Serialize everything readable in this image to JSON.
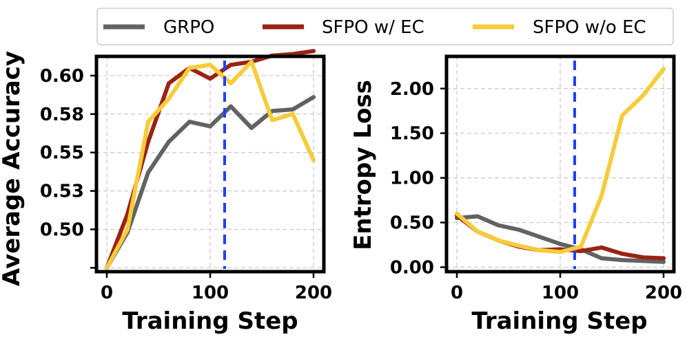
{
  "legend": {
    "entries": [
      {
        "label": "GRPO",
        "color": "#5f6361"
      },
      {
        "label": "SFPO w/ EC",
        "color": "#9b2314"
      },
      {
        "label": "SFPO w/o EC",
        "color": "#f6cc3b"
      }
    ]
  },
  "marker_color": "#1f3fff",
  "chart_data": [
    {
      "type": "line",
      "xlabel": "Training Step",
      "ylabel": "Average Accuracy",
      "xlim": [
        -10,
        210
      ],
      "ylim": [
        0.4775,
        0.6175
      ],
      "xticks": [
        0,
        100,
        200
      ],
      "xtick_labels": [
        "0",
        "100",
        "200"
      ],
      "yticks": [
        0.48,
        0.505,
        0.53,
        0.555,
        0.58,
        0.605
      ],
      "ytick_labels": [
        "",
        "0.50",
        "0.53",
        "0.55",
        "0.58",
        "0.60"
      ],
      "vline_x": 114,
      "x": [
        0,
        20,
        40,
        60,
        80,
        100,
        120,
        140,
        160,
        180,
        200
      ],
      "series": [
        {
          "name": "GRPO",
          "color": "#5f6361",
          "values": [
            0.48,
            0.503,
            0.542,
            0.562,
            0.575,
            0.572,
            0.585,
            0.571,
            0.582,
            0.583,
            0.591
          ]
        },
        {
          "name": "SFPO w/ EC",
          "color": "#9b2314",
          "values": [
            0.48,
            0.515,
            0.562,
            0.6,
            0.61,
            0.603,
            0.612,
            0.614,
            0.618,
            0.619,
            0.621
          ]
        },
        {
          "name": "SFPO w/o EC",
          "color": "#f6cc3b",
          "values": [
            0.48,
            0.505,
            0.575,
            0.59,
            0.61,
            0.612,
            0.6,
            0.614,
            0.576,
            0.58,
            0.55
          ]
        }
      ]
    },
    {
      "type": "line",
      "xlabel": "Training Step",
      "ylabel": "Entropy Loss",
      "xlim": [
        -10,
        210
      ],
      "ylim": [
        -0.05,
        2.36
      ],
      "xticks": [
        0,
        100,
        200
      ],
      "xtick_labels": [
        "0",
        "100",
        "200"
      ],
      "yticks": [
        0.0,
        0.5,
        1.0,
        1.5,
        2.0
      ],
      "ytick_labels": [
        "0.00",
        "0.50",
        "1.00",
        "1.50",
        "2.00"
      ],
      "vline_x": 114,
      "x": [
        0,
        20,
        40,
        60,
        80,
        100,
        120,
        140,
        160,
        180,
        200
      ],
      "series": [
        {
          "name": "GRPO",
          "color": "#5f6361",
          "values": [
            0.55,
            0.57,
            0.47,
            0.42,
            0.34,
            0.26,
            0.2,
            0.1,
            0.08,
            0.07,
            0.06
          ]
        },
        {
          "name": "SFPO w/ EC",
          "color": "#9b2314",
          "values": [
            0.58,
            0.4,
            0.3,
            0.23,
            0.19,
            0.2,
            0.18,
            0.22,
            0.15,
            0.11,
            0.1
          ]
        },
        {
          "name": "SFPO w/o EC",
          "color": "#f6cc3b",
          "values": [
            0.6,
            0.4,
            0.3,
            0.24,
            0.19,
            0.17,
            0.23,
            0.8,
            1.7,
            1.92,
            2.22
          ]
        }
      ]
    }
  ]
}
